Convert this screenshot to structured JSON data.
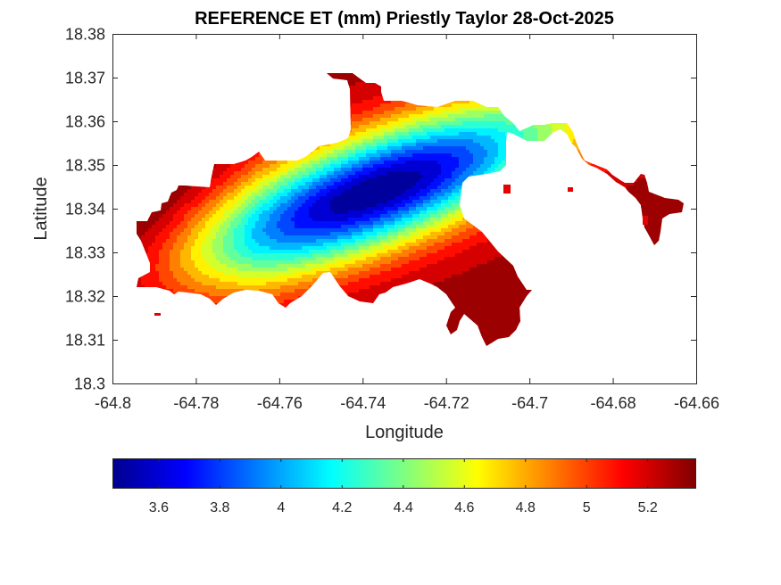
{
  "chart_data": {
    "type": "heatmap",
    "title": "REFERENCE ET (mm) Priestly Taylor 28-Oct-2025",
    "xlabel": "Longitude",
    "ylabel": "Latitude",
    "xlim": [
      -64.8,
      -64.66
    ],
    "ylim": [
      18.3,
      18.38
    ],
    "x_ticks": [
      -64.8,
      -64.78,
      -64.76,
      -64.74,
      -64.72,
      -64.7,
      -64.68,
      -64.66
    ],
    "x_tick_labels": [
      "-64.8",
      "-64.78",
      "-64.76",
      "-64.74",
      "-64.72",
      "-64.7",
      "-64.68",
      "-64.66"
    ],
    "y_ticks": [
      18.3,
      18.31,
      18.32,
      18.33,
      18.34,
      18.35,
      18.36,
      18.37,
      18.38
    ],
    "y_tick_labels": [
      "18.3",
      "18.31",
      "18.32",
      "18.33",
      "18.34",
      "18.35",
      "18.36",
      "18.37",
      "18.38"
    ],
    "colormap": "jet",
    "colorbar": {
      "range": [
        3.45,
        5.36
      ],
      "ticks": [
        3.6,
        3.8,
        4.0,
        4.2,
        4.4,
        4.6,
        4.8,
        5.0,
        5.2
      ],
      "tick_labels": [
        "3.6",
        "3.8",
        "4",
        "4.2",
        "4.4",
        "4.6",
        "4.8",
        "5",
        "5.2"
      ],
      "orientation": "horizontal"
    },
    "field": {
      "description": "Gridded reference ET over land; minimum near -64.737, 18.344; maximum on western tip",
      "min_value": 3.45,
      "min_location": [
        -64.737,
        18.344
      ],
      "max_value": 5.36,
      "max_location": [
        -64.79,
        18.329
      ]
    },
    "grid": false
  }
}
